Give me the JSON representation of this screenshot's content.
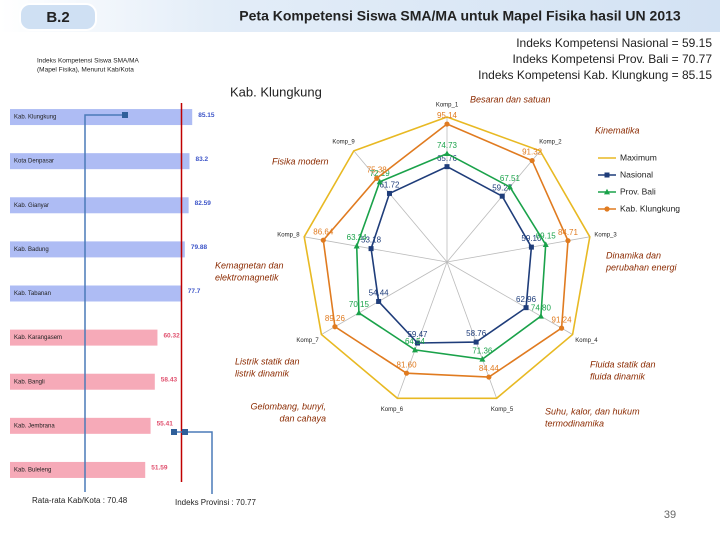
{
  "header": {
    "code": "B.2",
    "title": "Peta Kompetensi Siswa SMA/MA untuk Mapel Fisika hasil UN 2013"
  },
  "indices": [
    "Indeks Kompetensi Nasional = 59.15",
    "Indeks Kompetensi Prov. Bali = 70.77",
    "Indeks Kompetensi Kab. Klungkung = 85.15"
  ],
  "page_number": "39",
  "chart_data": [
    {
      "type": "bar",
      "orientation": "horizontal",
      "title_lines": [
        "Indeks Kompetensi Siswa SMA/MA",
        "(Mapel Fisika), Menurut Kab/Kota"
      ],
      "categories": [
        "Kab. Klungkung",
        "Kota Denpasar",
        "Kab. Gianyar",
        "Kab. Badung",
        "Kab. Tabanan",
        "Kab. Karangasem",
        "Kab. Bangli",
        "Kab. Jembrana",
        "Kab. Buleleng"
      ],
      "values": [
        85.15,
        83.2,
        82.59,
        79.88,
        77.7,
        60.32,
        58.43,
        55.41,
        51.59
      ],
      "colors": [
        "#aebcf4",
        "#aebcf4",
        "#aebcf4",
        "#aebcf4",
        "#aebcf4",
        "#f6aab8",
        "#f6aab8",
        "#f6aab8",
        "#f6aab8"
      ],
      "label_colors": [
        "#3d55c8",
        "#3d55c8",
        "#3d55c8",
        "#3d55c8",
        "#3d55c8",
        "#e0506e",
        "#e0506e",
        "#e0506e",
        "#e0506e"
      ],
      "xlim": [
        -45,
        95
      ],
      "reference_line": {
        "value": 77.5,
        "color": "#c00000"
      },
      "annotations": [
        "Rata-rata Kab/Kota : 70.48",
        "Indeks Provinsi : 70.77"
      ]
    },
    {
      "type": "radar",
      "title": "Kab. Klungkung",
      "categories": [
        "Komp_1",
        "Komp_2",
        "Komp_3",
        "Komp_4",
        "Komp_5",
        "Komp_6",
        "Komp_7",
        "Komp_8",
        "Komp_9"
      ],
      "rlim": [
        0,
        100
      ],
      "legend": "right",
      "series": [
        {
          "name": "Maximum",
          "color": "#e8b923",
          "marker": "none",
          "values": [
            100,
            100,
            100,
            100,
            100,
            100,
            100,
            100,
            100
          ]
        },
        {
          "name": "Nasional",
          "color": "#1f3d7a",
          "marker": "square",
          "values": [
            65.76,
            59.27,
            59.1,
            62.96,
            58.76,
            59.47,
            54.44,
            53.18,
            61.72
          ],
          "value_labels": [
            "65.76",
            "59.27",
            "59.10",
            "62.96",
            "58.76",
            "59.47",
            "54.44",
            "53.18",
            "61.72"
          ]
        },
        {
          "name": "Prov. Bali",
          "color": "#1aa24a",
          "marker": "triangle",
          "values": [
            74.73,
            67.51,
            69.15,
            74.8,
            71.36,
            64.54,
            70.15,
            63.24,
            72.19
          ],
          "value_labels": [
            "74.73",
            "67.51",
            "69.15",
            "74.80",
            "71.36",
            "64.54",
            "70.15",
            "63.24",
            "72.19"
          ]
        },
        {
          "name": "Kab. Klungkung",
          "color": "#e07b20",
          "marker": "circle",
          "values": [
            95.14,
            91.32,
            84.71,
            91.24,
            84.44,
            81.6,
            89.26,
            86.64,
            75.38
          ],
          "value_labels": [
            "95.14",
            "91.32",
            "84.71",
            "91.24",
            "84.44",
            "81.60",
            "89.26",
            "86.64",
            "75.38"
          ]
        }
      ],
      "annotations": [
        [
          "Besaran dan satuan"
        ],
        [
          "Kinematika"
        ],
        [
          "Dinamika dan",
          "perubahan energi"
        ],
        [
          "Fluida statik dan",
          "fluida dinamik"
        ],
        [
          "Suhu, kalor, dan hukum",
          "termodinamika"
        ],
        [
          "Gelombang, bunyi,",
          "dan cahaya"
        ],
        [
          "Listrik statik dan",
          "listrik dinamik"
        ],
        [
          "Kemagnetan dan",
          "elektromagnetik"
        ],
        [
          "Fisika modern"
        ]
      ]
    }
  ]
}
